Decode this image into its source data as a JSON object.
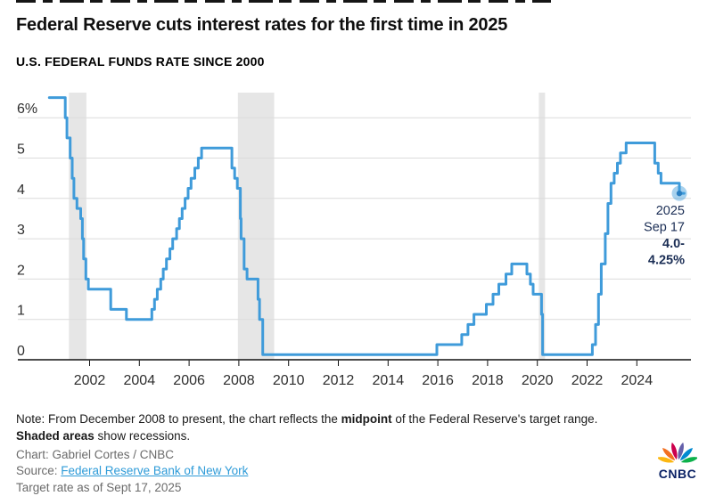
{
  "header": {
    "title": "Federal Reserve cuts interest rates for the first time in 2025",
    "subtitle": "U.S. FEDERAL FUNDS RATE SINCE 2000"
  },
  "chart_data": {
    "type": "line",
    "style": "step-after",
    "title": "U.S. FEDERAL FUNDS RATE SINCE 2000",
    "y_unit": "%",
    "xlim": [
      2000.3,
      2025.95
    ],
    "ylim": [
      0,
      6.6
    ],
    "grid": true,
    "x_ticks": [
      2002,
      2004,
      2006,
      2008,
      2010,
      2012,
      2014,
      2016,
      2018,
      2020,
      2022,
      2024
    ],
    "y_ticks": [
      0,
      1,
      2,
      3,
      4,
      5,
      6
    ],
    "y_top_label": "6%",
    "line_color": "#3F9BDA",
    "recession_band_color": "#E6E6E6",
    "recessions": [
      [
        2001.17,
        2001.87
      ],
      [
        2007.96,
        2009.42
      ],
      [
        2020.06,
        2020.31
      ]
    ],
    "points": [
      [
        2000.38,
        6.5
      ],
      [
        2001.02,
        6.0
      ],
      [
        2001.09,
        5.5
      ],
      [
        2001.22,
        5.0
      ],
      [
        2001.3,
        4.5
      ],
      [
        2001.37,
        4.0
      ],
      [
        2001.49,
        3.75
      ],
      [
        2001.64,
        3.5
      ],
      [
        2001.71,
        3.0
      ],
      [
        2001.76,
        2.5
      ],
      [
        2001.85,
        2.0
      ],
      [
        2001.95,
        1.75
      ],
      [
        2002.85,
        1.25
      ],
      [
        2003.48,
        1.0
      ],
      [
        2004.5,
        1.25
      ],
      [
        2004.61,
        1.5
      ],
      [
        2004.72,
        1.75
      ],
      [
        2004.86,
        2.0
      ],
      [
        2004.96,
        2.25
      ],
      [
        2005.09,
        2.5
      ],
      [
        2005.23,
        2.75
      ],
      [
        2005.34,
        3.0
      ],
      [
        2005.5,
        3.25
      ],
      [
        2005.61,
        3.5
      ],
      [
        2005.72,
        3.75
      ],
      [
        2005.84,
        4.0
      ],
      [
        2005.96,
        4.25
      ],
      [
        2006.08,
        4.5
      ],
      [
        2006.23,
        4.75
      ],
      [
        2006.37,
        5.0
      ],
      [
        2006.5,
        5.25
      ],
      [
        2007.72,
        4.75
      ],
      [
        2007.83,
        4.5
      ],
      [
        2007.94,
        4.25
      ],
      [
        2008.06,
        3.5
      ],
      [
        2008.09,
        3.0
      ],
      [
        2008.21,
        2.25
      ],
      [
        2008.33,
        2.0
      ],
      [
        2008.77,
        1.5
      ],
      [
        2008.83,
        1.0
      ],
      [
        2008.96,
        0.125
      ],
      [
        2015.96,
        0.375
      ],
      [
        2016.96,
        0.625
      ],
      [
        2017.21,
        0.875
      ],
      [
        2017.45,
        1.125
      ],
      [
        2017.95,
        1.375
      ],
      [
        2018.22,
        1.625
      ],
      [
        2018.45,
        1.875
      ],
      [
        2018.74,
        2.125
      ],
      [
        2018.97,
        2.375
      ],
      [
        2019.58,
        2.125
      ],
      [
        2019.72,
        1.875
      ],
      [
        2019.83,
        1.625
      ],
      [
        2020.17,
        1.125
      ],
      [
        2020.21,
        0.125
      ],
      [
        2022.21,
        0.375
      ],
      [
        2022.34,
        0.875
      ],
      [
        2022.46,
        1.625
      ],
      [
        2022.57,
        2.375
      ],
      [
        2022.73,
        3.125
      ],
      [
        2022.84,
        3.875
      ],
      [
        2022.96,
        4.375
      ],
      [
        2023.09,
        4.625
      ],
      [
        2023.22,
        4.875
      ],
      [
        2023.34,
        5.125
      ],
      [
        2023.57,
        5.375
      ],
      [
        2024.72,
        4.875
      ],
      [
        2024.86,
        4.625
      ],
      [
        2024.97,
        4.375
      ],
      [
        2025.71,
        4.125
      ]
    ],
    "line_end": 2025.9,
    "endpoint": {
      "year": 2025.71,
      "value": 4.125,
      "label_lines": [
        "2025",
        "Sep 17",
        "4.0-",
        "4.25%"
      ],
      "bold_from_index": 2,
      "label_color": "#1B2E55"
    }
  },
  "footer": {
    "note_parts": [
      {
        "t": "Note: From December 2008 to present, the chart reflects the ",
        "b": false
      },
      {
        "t": "midpoint",
        "b": true
      },
      {
        "t": " of the Federal Reserve's target range. ",
        "b": false
      },
      {
        "t": "Shaded areas",
        "b": true
      },
      {
        "t": " show recessions.",
        "b": false
      }
    ],
    "credit": "Chart: Gabriel Cortes / CNBC",
    "source_label": "Source: ",
    "source_link": "Federal Reserve Bank of New York",
    "cropped_line": "Target rate as of Sept 17, 2025"
  },
  "logo": {
    "text": "CNBC",
    "petal_colors": [
      "#FCB711",
      "#F37021",
      "#CC004C",
      "#6460AA",
      "#0089D0",
      "#0DB14B"
    ],
    "text_color": "#0b2265"
  }
}
